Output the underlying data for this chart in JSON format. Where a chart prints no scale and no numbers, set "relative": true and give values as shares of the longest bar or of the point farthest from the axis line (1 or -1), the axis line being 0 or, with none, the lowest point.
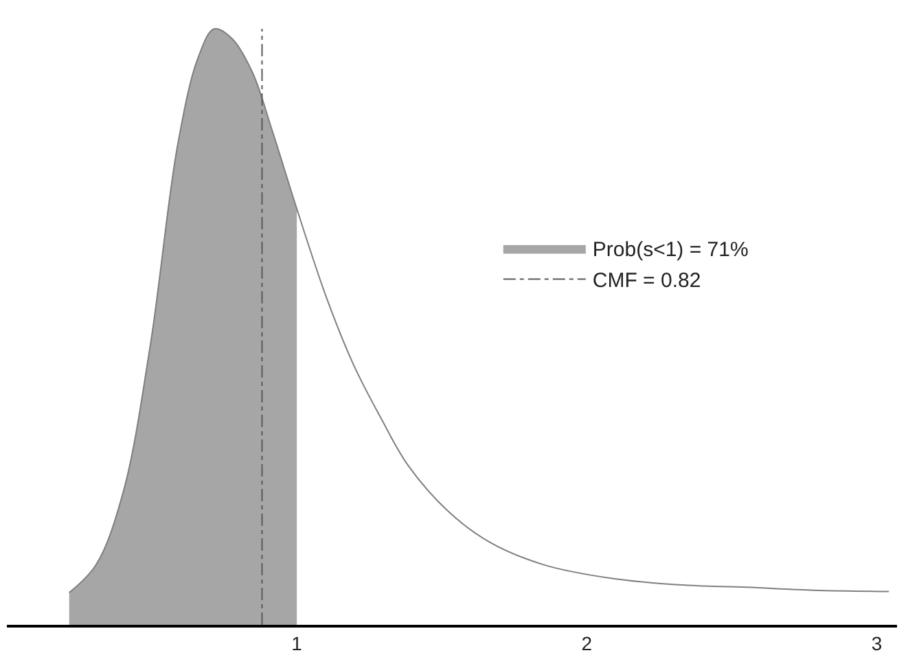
{
  "chart_data": {
    "type": "line",
    "relative": true,
    "xlim": [
      0,
      3.07
    ],
    "xticks": [
      1,
      2,
      3
    ],
    "series": [
      {
        "name": "Prob(s<1) = 71%",
        "type": "area",
        "color": "#a6a6a6",
        "x": [
          0.215,
          0.308,
          0.402,
          0.495,
          0.589,
          0.659,
          0.715,
          0.776,
          0.846,
          0.916,
          1.0
        ],
        "values": [
          0.054,
          0.101,
          0.224,
          0.47,
          0.805,
          0.951,
          1.0,
          0.984,
          0.928,
          0.828,
          0.698
        ]
      },
      {
        "color": "#7f7f7f",
        "x": [
          0.215,
          0.308,
          0.402,
          0.495,
          0.589,
          0.659,
          0.715,
          0.776,
          0.846,
          0.916,
          1.0,
          1.103,
          1.196,
          1.29,
          1.383,
          1.523,
          1.664,
          1.85,
          2.084,
          2.318,
          2.551,
          2.785,
          3.042
        ],
        "values": [
          0.054,
          0.101,
          0.224,
          0.47,
          0.805,
          0.951,
          1.0,
          0.984,
          0.928,
          0.828,
          0.698,
          0.548,
          0.436,
          0.347,
          0.268,
          0.19,
          0.139,
          0.101,
          0.078,
          0.067,
          0.063,
          0.058,
          0.056
        ]
      },
      {
        "name": "CMF = 0.82",
        "line_style": "dashed",
        "color": "#595959",
        "x": [
          0.88,
          0.88
        ],
        "values": [
          0,
          1.0
        ]
      }
    ],
    "legend": "right"
  }
}
